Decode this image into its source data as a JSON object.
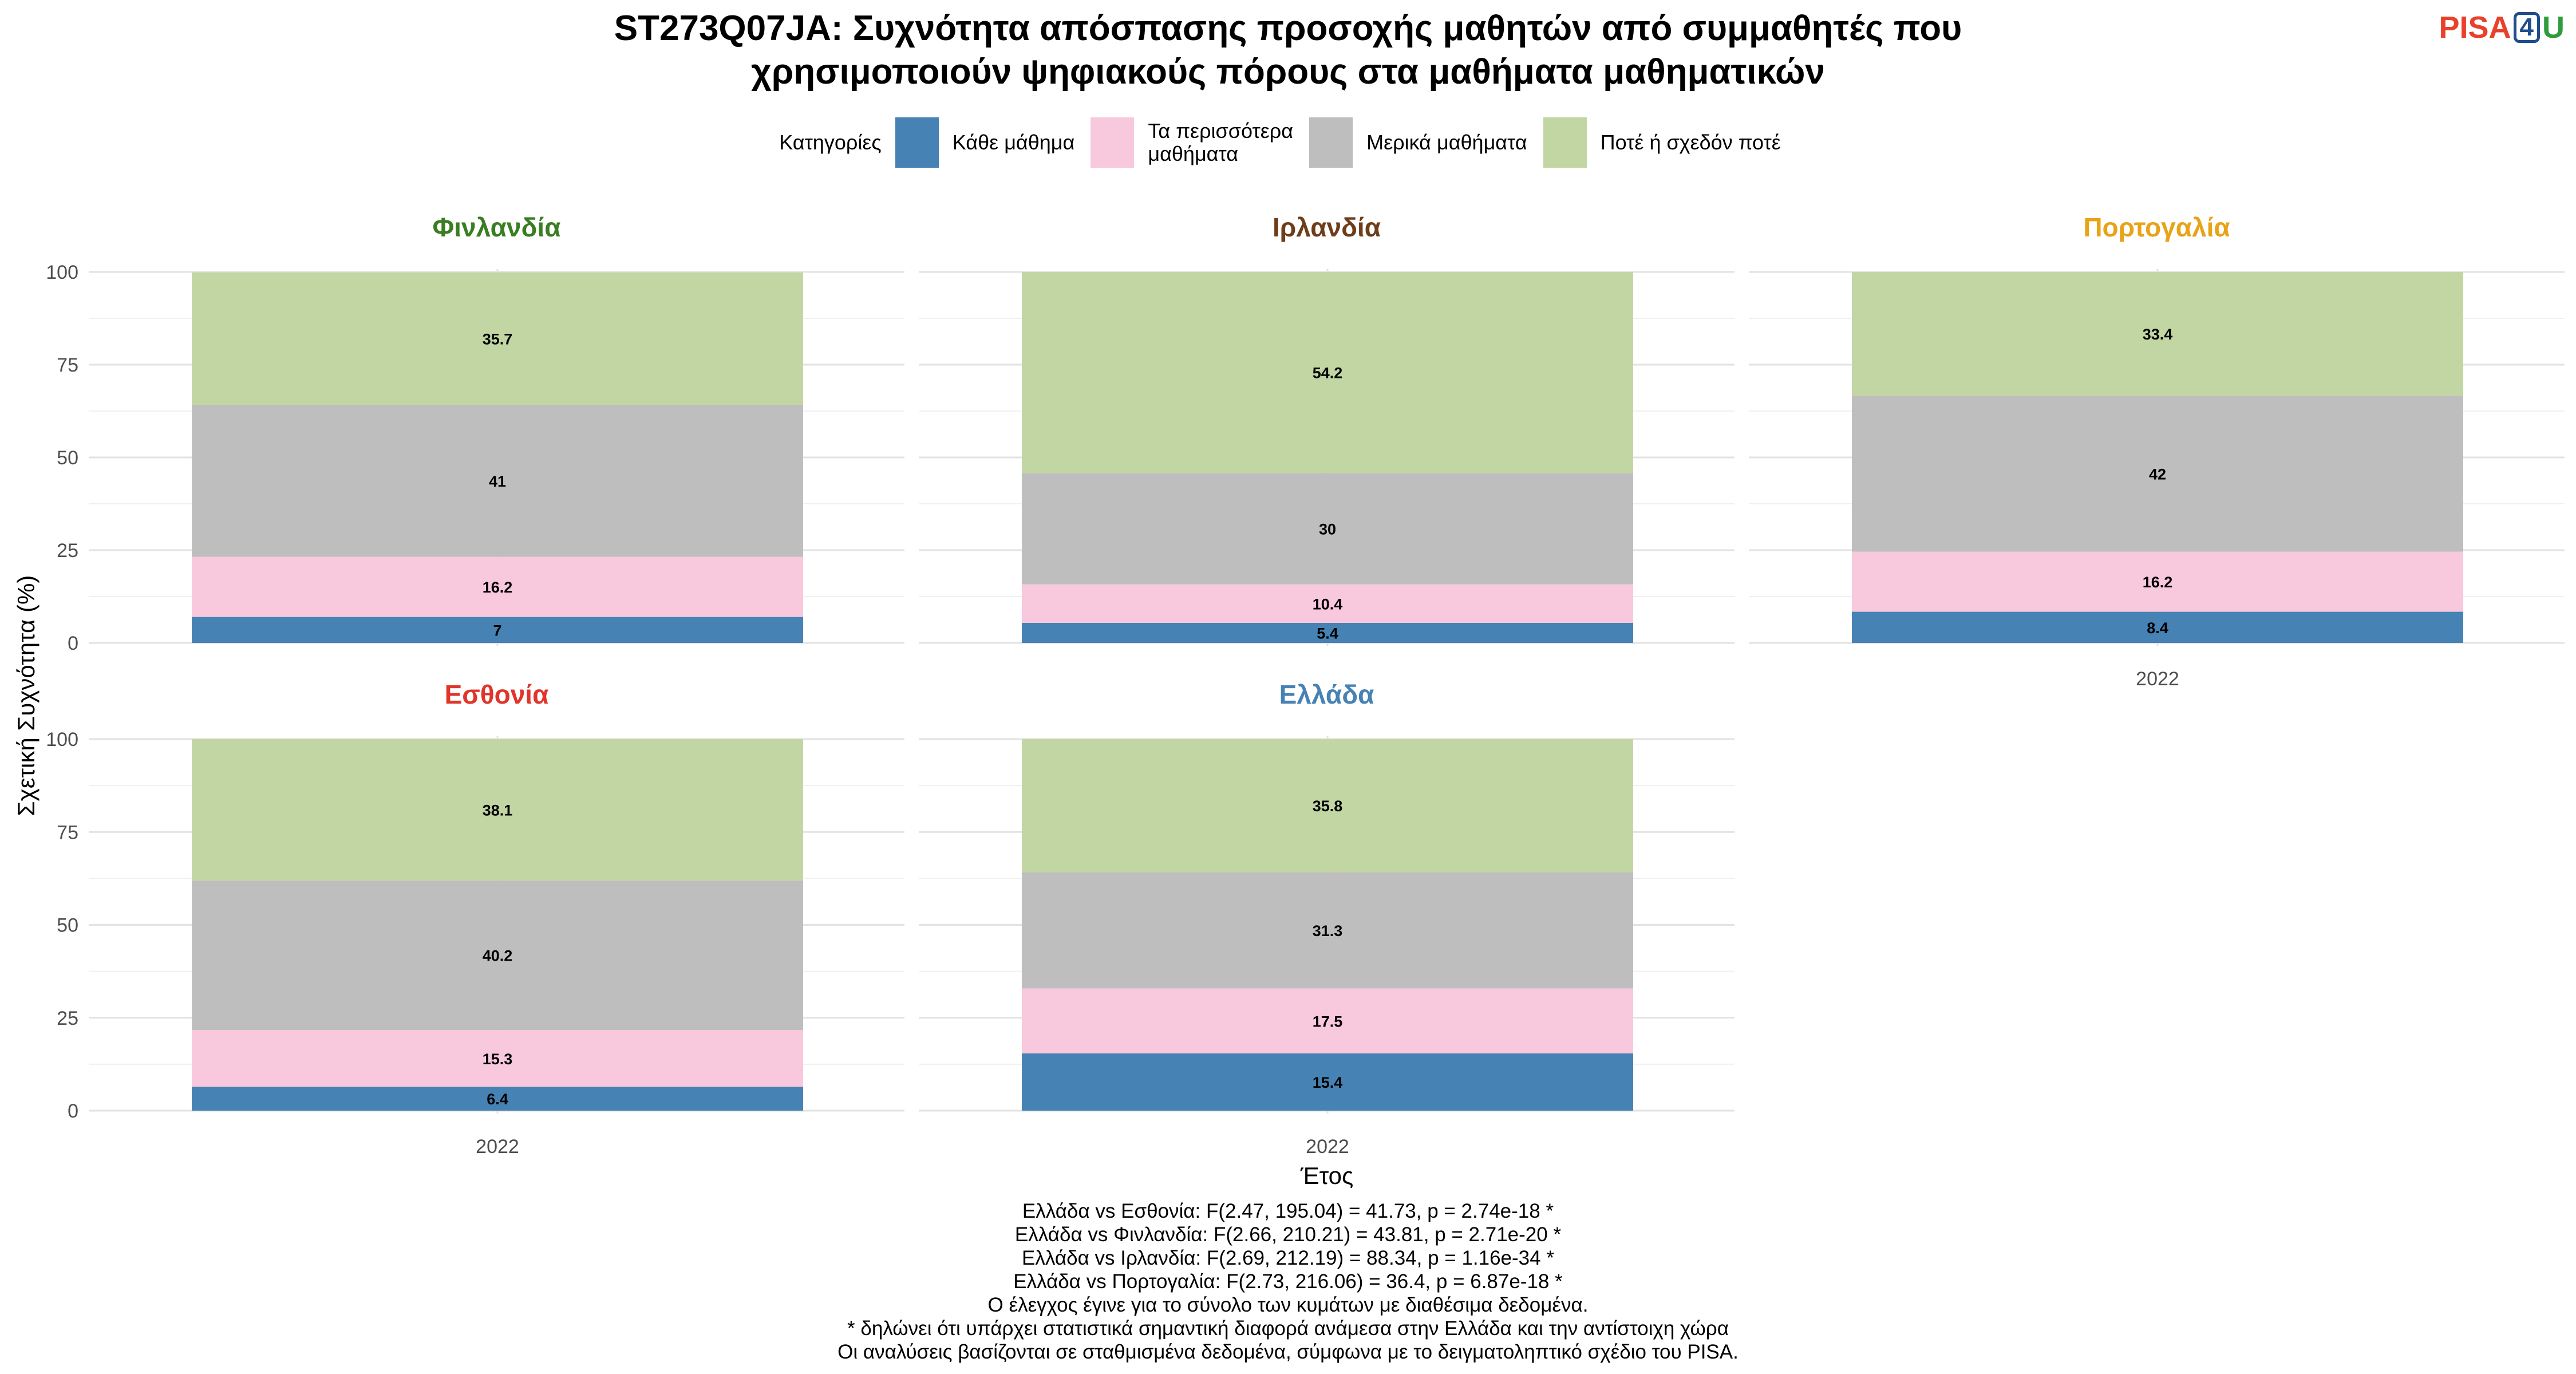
{
  "title_lines": [
    "ST273Q07JA: Συχνότητα απόσπασης προσοχής μαθητών από συμμαθητές που",
    "χρησιμοποιούν ψηφιακούς πόρους στα μαθήματα μαθηματικών"
  ],
  "logo": {
    "pisa": "PISA",
    "four": "4",
    "u": "U"
  },
  "legend": {
    "title": "Κατηγορίες",
    "items": [
      {
        "label": "Κάθε μάθημα",
        "color": "#4682b4"
      },
      {
        "label": "Τα περισσότερα\nμαθήματα",
        "color": "#f8c8dc"
      },
      {
        "label": "Μερικά μαθήματα",
        "color": "#bebebe"
      },
      {
        "label": "Ποτέ ή σχεδόν ποτέ",
        "color": "#c2d6a4"
      }
    ]
  },
  "chart_data": {
    "type": "bar",
    "stacked": true,
    "xlabel": "Έτος",
    "ylabel": "Σχετική Συχνότητα (%)",
    "ylim": [
      0,
      100
    ],
    "yticks": [
      0,
      25,
      50,
      75,
      100
    ],
    "categories": [
      "2022"
    ],
    "series_names": [
      "Κάθε μάθημα",
      "Τα περισσότερα μαθήματα",
      "Μερικά μαθήματα",
      "Ποτέ ή σχεδόν ποτέ"
    ],
    "panels": [
      {
        "country": "Φινλανδία",
        "color": "#3a7d22",
        "values": [
          7,
          16.2,
          41,
          35.7
        ],
        "labels": [
          "7",
          "16.2",
          "41",
          "35.7"
        ]
      },
      {
        "country": "Ιρλανδία",
        "color": "#6e3d1a",
        "values": [
          5.4,
          10.4,
          30,
          54.2
        ],
        "labels": [
          "5.4",
          "10.4",
          "30",
          "54.2"
        ]
      },
      {
        "country": "Πορτογαλία",
        "color": "#e8a317",
        "values": [
          8.4,
          16.2,
          42,
          33.4
        ],
        "labels": [
          "8.4",
          "16.2",
          "42",
          "33.4"
        ]
      },
      {
        "country": "Εσθονία",
        "color": "#e0352b",
        "values": [
          6.4,
          15.3,
          40.2,
          38.1
        ],
        "labels": [
          "6.4",
          "15.3",
          "40.2",
          "38.1"
        ]
      },
      {
        "country": "Ελλάδα",
        "color": "#4682b4",
        "values": [
          15.4,
          17.5,
          31.3,
          35.8
        ],
        "labels": [
          "15.4",
          "17.5",
          "31.3",
          "35.8"
        ]
      }
    ]
  },
  "notes": [
    "Ελλάδα vs Εσθονία: F(2.47, 195.04) = 41.73, p = 2.74e-18 *",
    "Ελλάδα vs Φινλανδία: F(2.66, 210.21) = 43.81, p = 2.71e-20 *",
    "Ελλάδα vs Ιρλανδία: F(2.69, 212.19) = 88.34, p = 1.16e-34 *",
    "Ελλάδα vs Πορτογαλία: F(2.73, 216.06) = 36.4, p = 6.87e-18 *",
    "Ο έλεγχος έγινε για το σύνολο των κυμάτων με διαθέσιμα δεδομένα.",
    "* δηλώνει ότι υπάρχει στατιστικά σημαντική διαφορά ανάμεσα στην Ελλάδα και την αντίστοιχη χώρα",
    "Οι αναλύσεις βασίζονται σε σταθμισμένα δεδομένα, σύμφωνα με το δειγματοληπτικό σχέδιο του PISA."
  ]
}
